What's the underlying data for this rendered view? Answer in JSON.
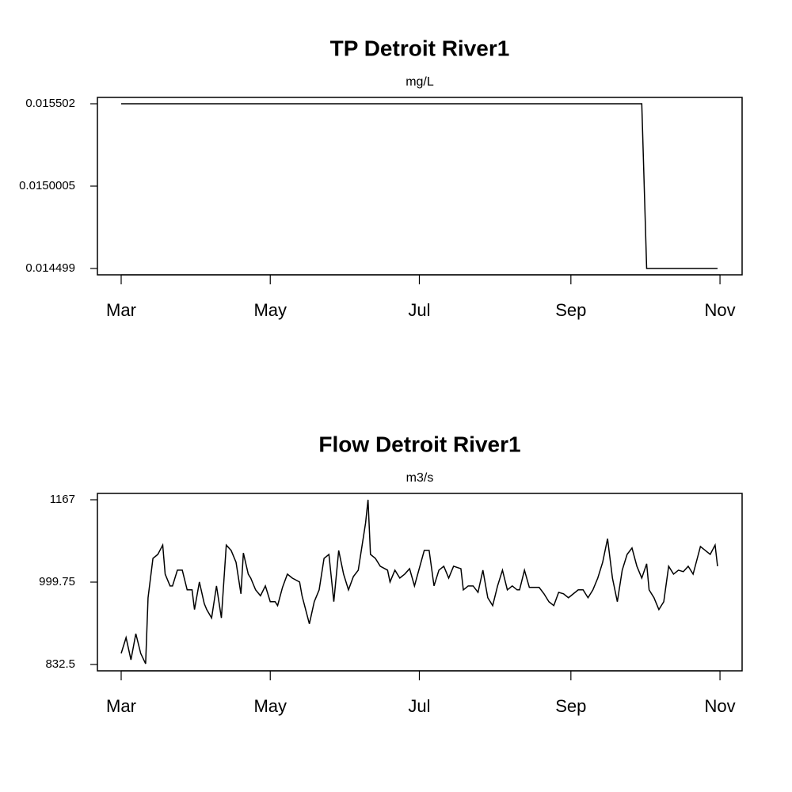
{
  "chart_data": [
    {
      "type": "line",
      "title": "TP Detroit River1",
      "subtitle": "mg/L",
      "color": "#000000",
      "x": [
        0,
        213,
        215,
        244
      ],
      "values": [
        0.015502,
        0.015502,
        0.014499,
        0.014499
      ],
      "xlim": [
        -9.72,
        254.05
      ],
      "xticks": [
        {
          "value": 0,
          "label": "Mar"
        },
        {
          "value": 61,
          "label": "May"
        },
        {
          "value": 122,
          "label": "Jul"
        },
        {
          "value": 184,
          "label": "Sep"
        },
        {
          "value": 245,
          "label": "Nov"
        }
      ],
      "ylim": [
        0.0144604,
        0.0155406
      ],
      "yticks": [
        0.014499,
        0.0150005,
        0.015502
      ]
    },
    {
      "type": "line",
      "title": "Flow Detroit River1",
      "subtitle": "m3/s",
      "color": "#000000",
      "x": [
        0,
        2,
        4,
        6,
        8,
        10,
        11,
        13,
        15,
        17,
        18,
        20,
        21,
        23,
        25,
        27,
        29,
        30,
        32,
        34,
        35,
        37,
        39,
        41,
        43,
        45,
        47,
        49,
        50,
        52,
        53,
        55,
        57,
        59,
        61,
        63,
        64,
        66,
        68,
        70,
        73,
        74,
        77,
        79,
        81,
        83,
        85,
        87,
        89,
        91,
        93,
        95,
        97,
        98,
        100,
        101,
        102,
        104,
        106,
        109,
        110,
        112,
        114,
        116,
        118,
        120,
        124,
        126,
        128,
        130,
        132,
        134,
        136,
        139,
        140,
        142,
        144,
        146,
        148,
        150,
        152,
        154,
        156,
        158,
        160,
        162,
        163,
        165,
        167,
        169,
        171,
        173,
        175,
        177,
        179,
        181,
        183,
        185,
        187,
        189,
        191,
        193,
        195,
        197,
        199,
        201,
        203,
        205,
        207,
        209,
        211,
        213,
        215,
        216,
        218,
        220,
        222,
        224,
        226,
        228,
        230,
        232,
        234,
        237,
        241,
        243,
        244
      ],
      "values": [
        855,
        887,
        842,
        895,
        855,
        834,
        968,
        1048,
        1056,
        1075,
        1016,
        992,
        992,
        1024,
        1024,
        984,
        984,
        944,
        1000,
        956,
        944,
        927,
        992,
        927,
        1075,
        1064,
        1040,
        976,
        1059,
        1016,
        1008,
        984,
        972,
        992,
        960,
        960,
        952,
        989,
        1016,
        1008,
        1000,
        972,
        915,
        960,
        984,
        1048,
        1056,
        960,
        1064,
        1016,
        984,
        1011,
        1024,
        1056,
        1120,
        1167,
        1056,
        1048,
        1032,
        1024,
        1000,
        1024,
        1008,
        1016,
        1027,
        992,
        1064,
        1064,
        992,
        1024,
        1032,
        1008,
        1032,
        1027,
        984,
        992,
        992,
        979,
        1024,
        968,
        952,
        992,
        1024,
        984,
        992,
        984,
        984,
        1024,
        989,
        989,
        989,
        976,
        960,
        952,
        979,
        976,
        968,
        976,
        984,
        984,
        968,
        984,
        1008,
        1040,
        1088,
        1008,
        960,
        1024,
        1056,
        1069,
        1032,
        1008,
        1037,
        984,
        968,
        944,
        960,
        1032,
        1016,
        1024,
        1021,
        1032,
        1016,
        1072,
        1056,
        1075,
        1032
      ],
      "xlim": [
        -9.72,
        254.05
      ],
      "xticks": [
        {
          "value": 0,
          "label": "Mar"
        },
        {
          "value": 61,
          "label": "May"
        },
        {
          "value": 122,
          "label": "Jul"
        },
        {
          "value": 184,
          "label": "Sep"
        },
        {
          "value": 245,
          "label": "Nov"
        }
      ],
      "ylim": [
        819.63,
        1179.87
      ],
      "yticks": [
        832.5,
        999.75,
        1167
      ]
    }
  ]
}
